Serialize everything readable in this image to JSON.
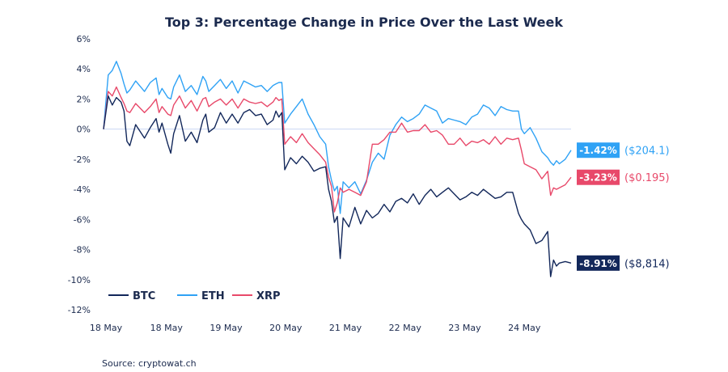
{
  "colors": {
    "BTC": "#12275a",
    "ETH": "#2fa2f5",
    "XRP": "#e8496a",
    "zero_line": "#c9d6f2",
    "text": "#1b2a4e"
  },
  "chart_data": {
    "type": "line",
    "title": "Top 3: Percentage Change in Price Over the Last Week",
    "source": "Source: cryptowat.ch",
    "ylim": [
      -12,
      6
    ],
    "ytick_labels": [
      "6%",
      "4%",
      "2%",
      "0%",
      "-2%",
      "-4%",
      "-6%",
      "-8%",
      "-10%",
      "-12%"
    ],
    "ytick_values": [
      6,
      4,
      2,
      0,
      -2,
      -4,
      -6,
      -8,
      -10,
      -12
    ],
    "x_range": [
      0,
      8
    ],
    "xtick_labels": [
      "18 May",
      "18 May",
      "19 May",
      "20 May",
      "21 May",
      "22 May",
      "23 May",
      "24 May"
    ],
    "xtick_values": [
      0,
      1,
      2,
      3,
      4,
      5,
      6,
      7
    ],
    "legend": [
      "BTC",
      "ETH",
      "XRP"
    ],
    "legend_position": "lower-left",
    "reference_line": 0,
    "series": [
      {
        "name": "BTC",
        "x": [
          0,
          0.08,
          0.15,
          0.22,
          0.3,
          0.35,
          0.4,
          0.45,
          0.55,
          0.7,
          0.8,
          0.9,
          0.95,
          1.0,
          1.1,
          1.15,
          1.2,
          1.3,
          1.4,
          1.5,
          1.6,
          1.7,
          1.75,
          1.8,
          1.9,
          2.0,
          2.1,
          2.2,
          2.3,
          2.4,
          2.5,
          2.6,
          2.7,
          2.8,
          2.9,
          2.95,
          3.0,
          3.05,
          3.1,
          3.2,
          3.3,
          3.4,
          3.5,
          3.6,
          3.7,
          3.8,
          3.85,
          3.9,
          3.95,
          4.0,
          4.05,
          4.1,
          4.2,
          4.3,
          4.4,
          4.5,
          4.6,
          4.7,
          4.8,
          4.9,
          5.0,
          5.1,
          5.2,
          5.3,
          5.4,
          5.5,
          5.6,
          5.7,
          5.8,
          5.9,
          6.0,
          6.1,
          6.2,
          6.3,
          6.4,
          6.5,
          6.6,
          6.7,
          6.8,
          6.9,
          7.0,
          7.1,
          7.15,
          7.2,
          7.3,
          7.4,
          7.5,
          7.6,
          7.65,
          7.7,
          7.75,
          7.8,
          7.9,
          8.0
        ],
        "values": [
          0,
          2.2,
          1.6,
          2.1,
          1.8,
          1.2,
          -0.8,
          -1.1,
          0.3,
          -0.6,
          0.1,
          0.7,
          -0.2,
          0.4,
          -1.0,
          -1.6,
          -0.3,
          0.9,
          -0.8,
          -0.2,
          -0.9,
          0.6,
          1.0,
          -0.2,
          0.1,
          1.1,
          0.4,
          1.0,
          0.4,
          1.1,
          1.3,
          0.9,
          1.0,
          0.3,
          0.6,
          1.2,
          0.8,
          1.1,
          -2.7,
          -1.9,
          -2.3,
          -1.8,
          -2.2,
          -2.8,
          -2.6,
          -2.5,
          -4.0,
          -4.8,
          -6.2,
          -5.8,
          -8.6,
          -5.9,
          -6.5,
          -5.2,
          -6.3,
          -5.4,
          -5.9,
          -5.6,
          -5.0,
          -5.5,
          -4.8,
          -4.6,
          -4.9,
          -4.3,
          -5.0,
          -4.4,
          -4.0,
          -4.5,
          -4.2,
          -3.9,
          -4.3,
          -4.7,
          -4.5,
          -4.2,
          -4.4,
          -4.0,
          -4.3,
          -4.6,
          -4.5,
          -4.2,
          -4.2,
          -5.6,
          -6.0,
          -6.3,
          -6.7,
          -7.6,
          -7.4,
          -6.8,
          -9.8,
          -8.7,
          -9.1,
          -8.9,
          -8.8,
          -8.9
        ]
      },
      {
        "name": "ETH",
        "x": [
          0,
          0.08,
          0.15,
          0.22,
          0.3,
          0.35,
          0.4,
          0.45,
          0.55,
          0.7,
          0.8,
          0.9,
          0.95,
          1.0,
          1.1,
          1.15,
          1.2,
          1.3,
          1.4,
          1.5,
          1.6,
          1.7,
          1.75,
          1.8,
          1.9,
          2.0,
          2.1,
          2.2,
          2.3,
          2.4,
          2.5,
          2.6,
          2.7,
          2.8,
          2.9,
          2.95,
          3.0,
          3.05,
          3.1,
          3.2,
          3.3,
          3.4,
          3.5,
          3.6,
          3.7,
          3.8,
          3.85,
          3.9,
          3.95,
          4.0,
          4.05,
          4.1,
          4.2,
          4.3,
          4.4,
          4.5,
          4.6,
          4.7,
          4.8,
          4.9,
          5.0,
          5.1,
          5.2,
          5.3,
          5.4,
          5.5,
          5.6,
          5.7,
          5.8,
          5.9,
          6.0,
          6.1,
          6.2,
          6.3,
          6.4,
          6.5,
          6.6,
          6.7,
          6.8,
          6.9,
          7.0,
          7.1,
          7.15,
          7.2,
          7.3,
          7.4,
          7.5,
          7.6,
          7.65,
          7.7,
          7.75,
          7.8,
          7.9,
          8.0
        ],
        "values": [
          0,
          3.6,
          3.9,
          4.5,
          3.7,
          3.0,
          2.4,
          2.6,
          3.2,
          2.5,
          3.1,
          3.4,
          2.3,
          2.7,
          2.1,
          2.0,
          2.8,
          3.6,
          2.5,
          2.9,
          2.3,
          3.5,
          3.2,
          2.5,
          2.9,
          3.3,
          2.7,
          3.2,
          2.4,
          3.2,
          3.0,
          2.8,
          2.9,
          2.5,
          2.9,
          3.0,
          3.1,
          3.1,
          0.4,
          1.0,
          1.5,
          2.0,
          1.0,
          0.3,
          -0.5,
          -1.0,
          -2.5,
          -3.4,
          -4.1,
          -3.8,
          -5.6,
          -3.5,
          -3.9,
          -3.5,
          -4.3,
          -3.4,
          -2.2,
          -1.6,
          -2.0,
          -0.4,
          0.3,
          0.8,
          0.5,
          0.7,
          1.0,
          1.6,
          1.4,
          1.2,
          0.4,
          0.7,
          0.6,
          0.5,
          0.3,
          0.8,
          1.0,
          1.6,
          1.4,
          0.9,
          1.5,
          1.3,
          1.2,
          1.2,
          0.0,
          -0.3,
          0.1,
          -0.6,
          -1.5,
          -1.9,
          -2.2,
          -2.4,
          -2.1,
          -2.3,
          -2.0,
          -1.4
        ]
      },
      {
        "name": "XRP",
        "x": [
          0,
          0.08,
          0.15,
          0.22,
          0.3,
          0.35,
          0.4,
          0.45,
          0.55,
          0.7,
          0.8,
          0.9,
          0.95,
          1.0,
          1.1,
          1.15,
          1.2,
          1.3,
          1.4,
          1.5,
          1.6,
          1.7,
          1.75,
          1.8,
          1.9,
          2.0,
          2.1,
          2.2,
          2.3,
          2.4,
          2.5,
          2.6,
          2.7,
          2.8,
          2.9,
          2.95,
          3.0,
          3.05,
          3.1,
          3.2,
          3.3,
          3.4,
          3.5,
          3.6,
          3.7,
          3.8,
          3.85,
          3.9,
          3.95,
          4.0,
          4.05,
          4.1,
          4.2,
          4.3,
          4.4,
          4.5,
          4.6,
          4.7,
          4.8,
          4.9,
          5.0,
          5.1,
          5.2,
          5.3,
          5.4,
          5.5,
          5.6,
          5.7,
          5.8,
          5.9,
          6.0,
          6.1,
          6.2,
          6.3,
          6.4,
          6.5,
          6.6,
          6.7,
          6.8,
          6.9,
          7.0,
          7.1,
          7.15,
          7.2,
          7.3,
          7.4,
          7.5,
          7.6,
          7.65,
          7.7,
          7.75,
          7.8,
          7.9,
          8.0
        ],
        "values": [
          0,
          2.5,
          2.2,
          2.8,
          2.1,
          1.7,
          1.2,
          1.1,
          1.7,
          1.1,
          1.5,
          2.0,
          1.1,
          1.5,
          1.0,
          0.9,
          1.6,
          2.2,
          1.4,
          1.9,
          1.2,
          2.0,
          2.1,
          1.5,
          1.8,
          2.0,
          1.6,
          2.0,
          1.4,
          2.0,
          1.8,
          1.7,
          1.8,
          1.5,
          1.8,
          2.1,
          1.9,
          2.0,
          -1.0,
          -0.5,
          -0.9,
          -0.3,
          -0.9,
          -1.3,
          -1.7,
          -2.2,
          -3.2,
          -3.8,
          -5.5,
          -4.9,
          -3.9,
          -4.2,
          -4.0,
          -4.2,
          -4.4,
          -3.5,
          -1.0,
          -1.0,
          -0.7,
          -0.2,
          -0.2,
          0.4,
          -0.2,
          -0.1,
          -0.1,
          0.3,
          -0.2,
          -0.1,
          -0.4,
          -1.0,
          -1.0,
          -0.6,
          -1.1,
          -0.8,
          -0.9,
          -0.7,
          -1.0,
          -0.5,
          -1.0,
          -0.6,
          -0.7,
          -0.6,
          -1.4,
          -2.3,
          -2.5,
          -2.7,
          -3.3,
          -2.8,
          -4.4,
          -3.9,
          -4.0,
          -3.9,
          -3.7,
          -3.2
        ]
      }
    ],
    "end_labels": [
      {
        "series": "ETH",
        "pct": "-1.42%",
        "price": "($204.1)"
      },
      {
        "series": "XRP",
        "pct": "-3.23%",
        "price": "($0.195)"
      },
      {
        "series": "BTC",
        "pct": "-8.91%",
        "price": "($8,814)"
      }
    ]
  }
}
